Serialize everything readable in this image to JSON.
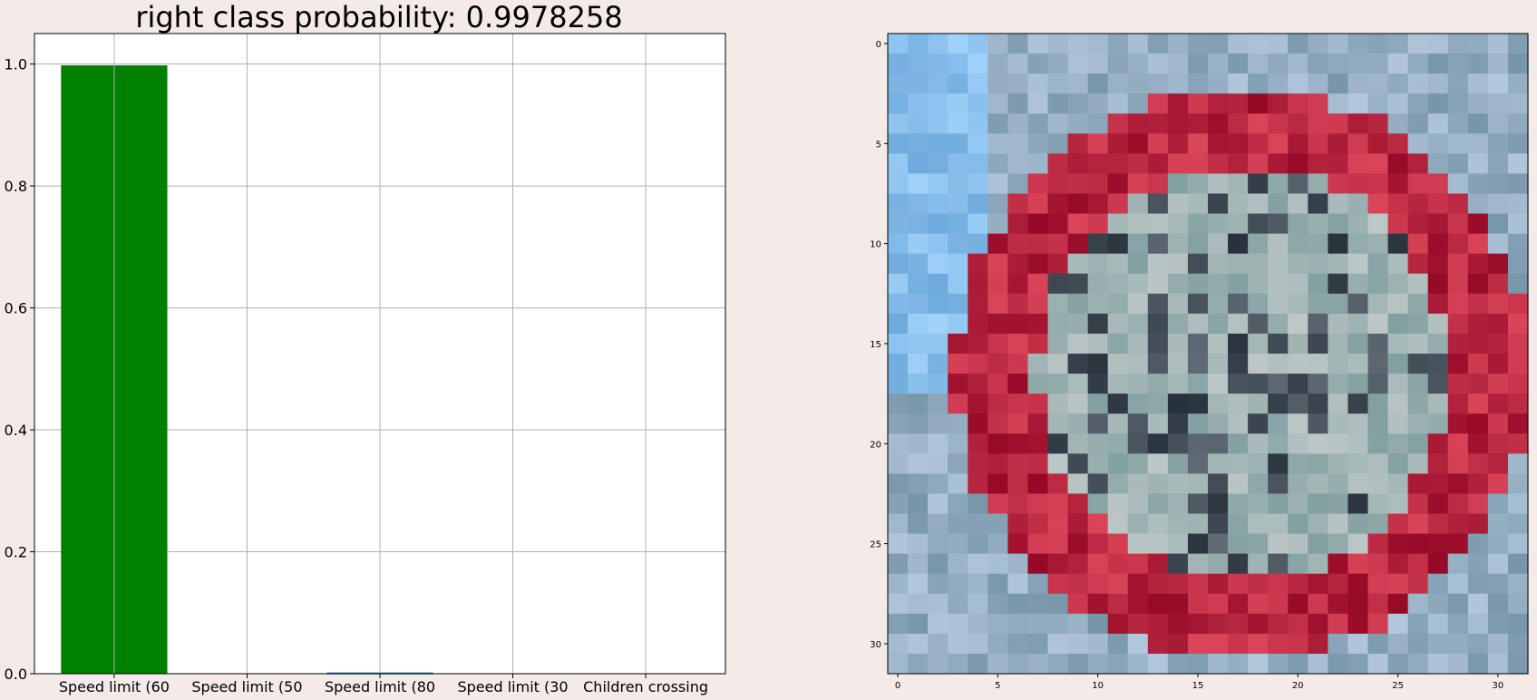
{
  "chart_data": [
    {
      "type": "bar",
      "title": "right class probability: 0.9978258",
      "categories": [
        "Speed limit (60",
        "Speed limit (50",
        "Speed limit (80",
        "Speed limit (30",
        "Children crossing"
      ],
      "values": [
        0.9978258,
        0.0,
        0.002,
        0.0,
        0.0
      ],
      "bar_colors": [
        "#008000",
        "#1f77b4",
        "#1f77b4",
        "#1f77b4",
        "#1f77b4"
      ],
      "ylim": [
        0,
        1.05
      ],
      "yticks": [
        "0.0",
        "0.2",
        "0.4",
        "0.6",
        "0.8",
        "1.0"
      ],
      "grid": true
    },
    {
      "type": "heatmap",
      "description": "32x32 pixelated traffic sign image (speed limit sign, red ring)",
      "xticks": [
        "0",
        "5",
        "10",
        "15",
        "20",
        "25",
        "30"
      ],
      "yticks": [
        "0",
        "5",
        "10",
        "15",
        "20",
        "25",
        "30"
      ],
      "xlim": [
        -0.5,
        31.5
      ],
      "ylim": [
        -0.5,
        31.5
      ]
    }
  ]
}
